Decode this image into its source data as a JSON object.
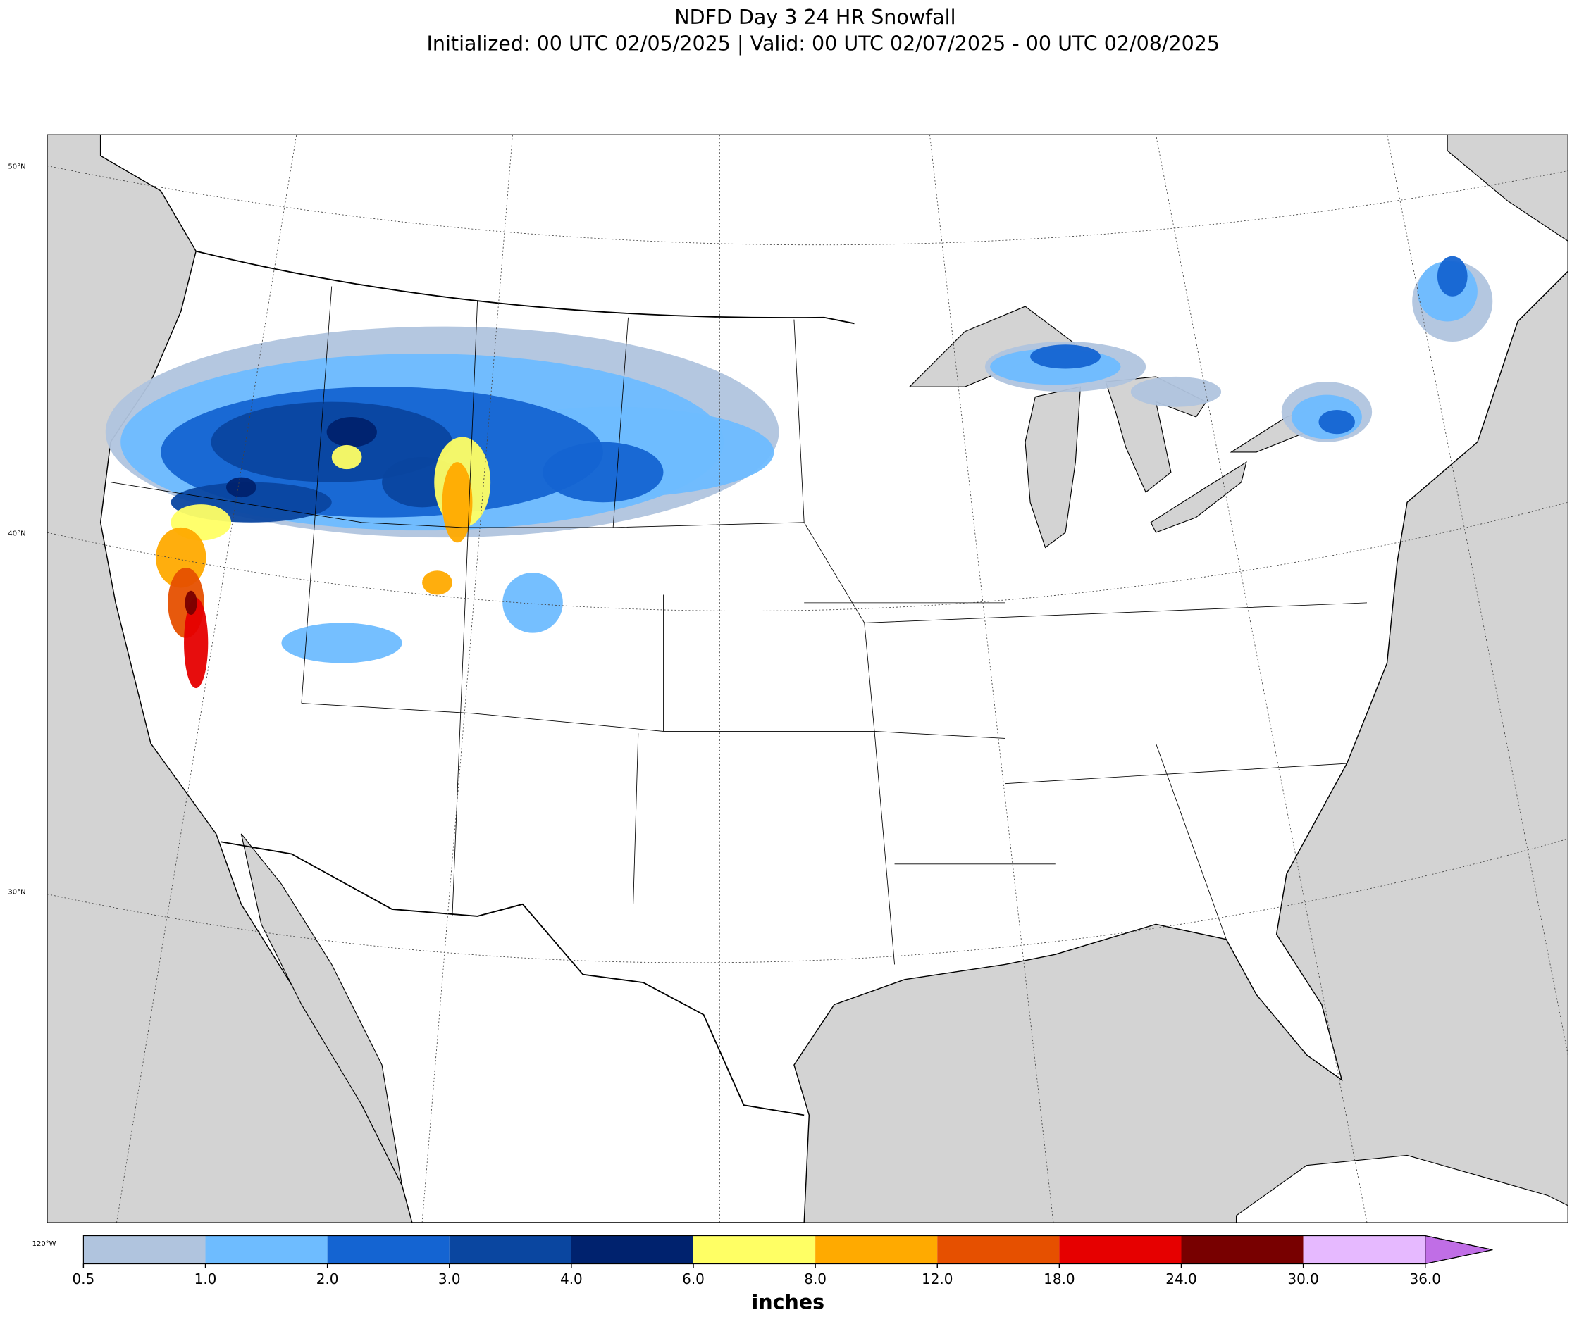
{
  "title": "NDFD Day 3 24 HR Snowfall",
  "subtitle": "Initialized: 00 UTC 02/05/2025 | Valid: 00 UTC 02/07/2025 - 00 UTC 02/08/2025",
  "map": {
    "lat_labels": [
      "50°N",
      "40°N",
      "30°N"
    ],
    "lon_labels": [
      "120°W"
    ]
  },
  "colorbar": {
    "label": "inches",
    "ticks": [
      0.5,
      {
        "value": 1,
        "label": "1.0"
      },
      {
        "value": 2,
        "label": "2.0"
      },
      {
        "value": 3,
        "label": "3.0"
      },
      {
        "value": 4,
        "label": "4.0"
      },
      {
        "value": 6,
        "label": "6.0"
      },
      {
        "value": 8,
        "label": "8.0"
      },
      {
        "value": 12,
        "label": "12.0"
      },
      {
        "value": 18,
        "label": "18.0"
      },
      {
        "value": 24,
        "label": "24.0"
      },
      {
        "value": 30,
        "label": "30.0"
      },
      {
        "value": 36,
        "label": "36.0"
      }
    ],
    "colors": [
      "#b0c4de",
      "#6ebcff",
      "#1464d2",
      "#0a46a0",
      "#00226e",
      "#ffff64",
      "#ffaa00",
      "#e65000",
      "#e60000",
      "#780000",
      "#e6b9ff",
      "#c06ee6"
    ]
  }
}
